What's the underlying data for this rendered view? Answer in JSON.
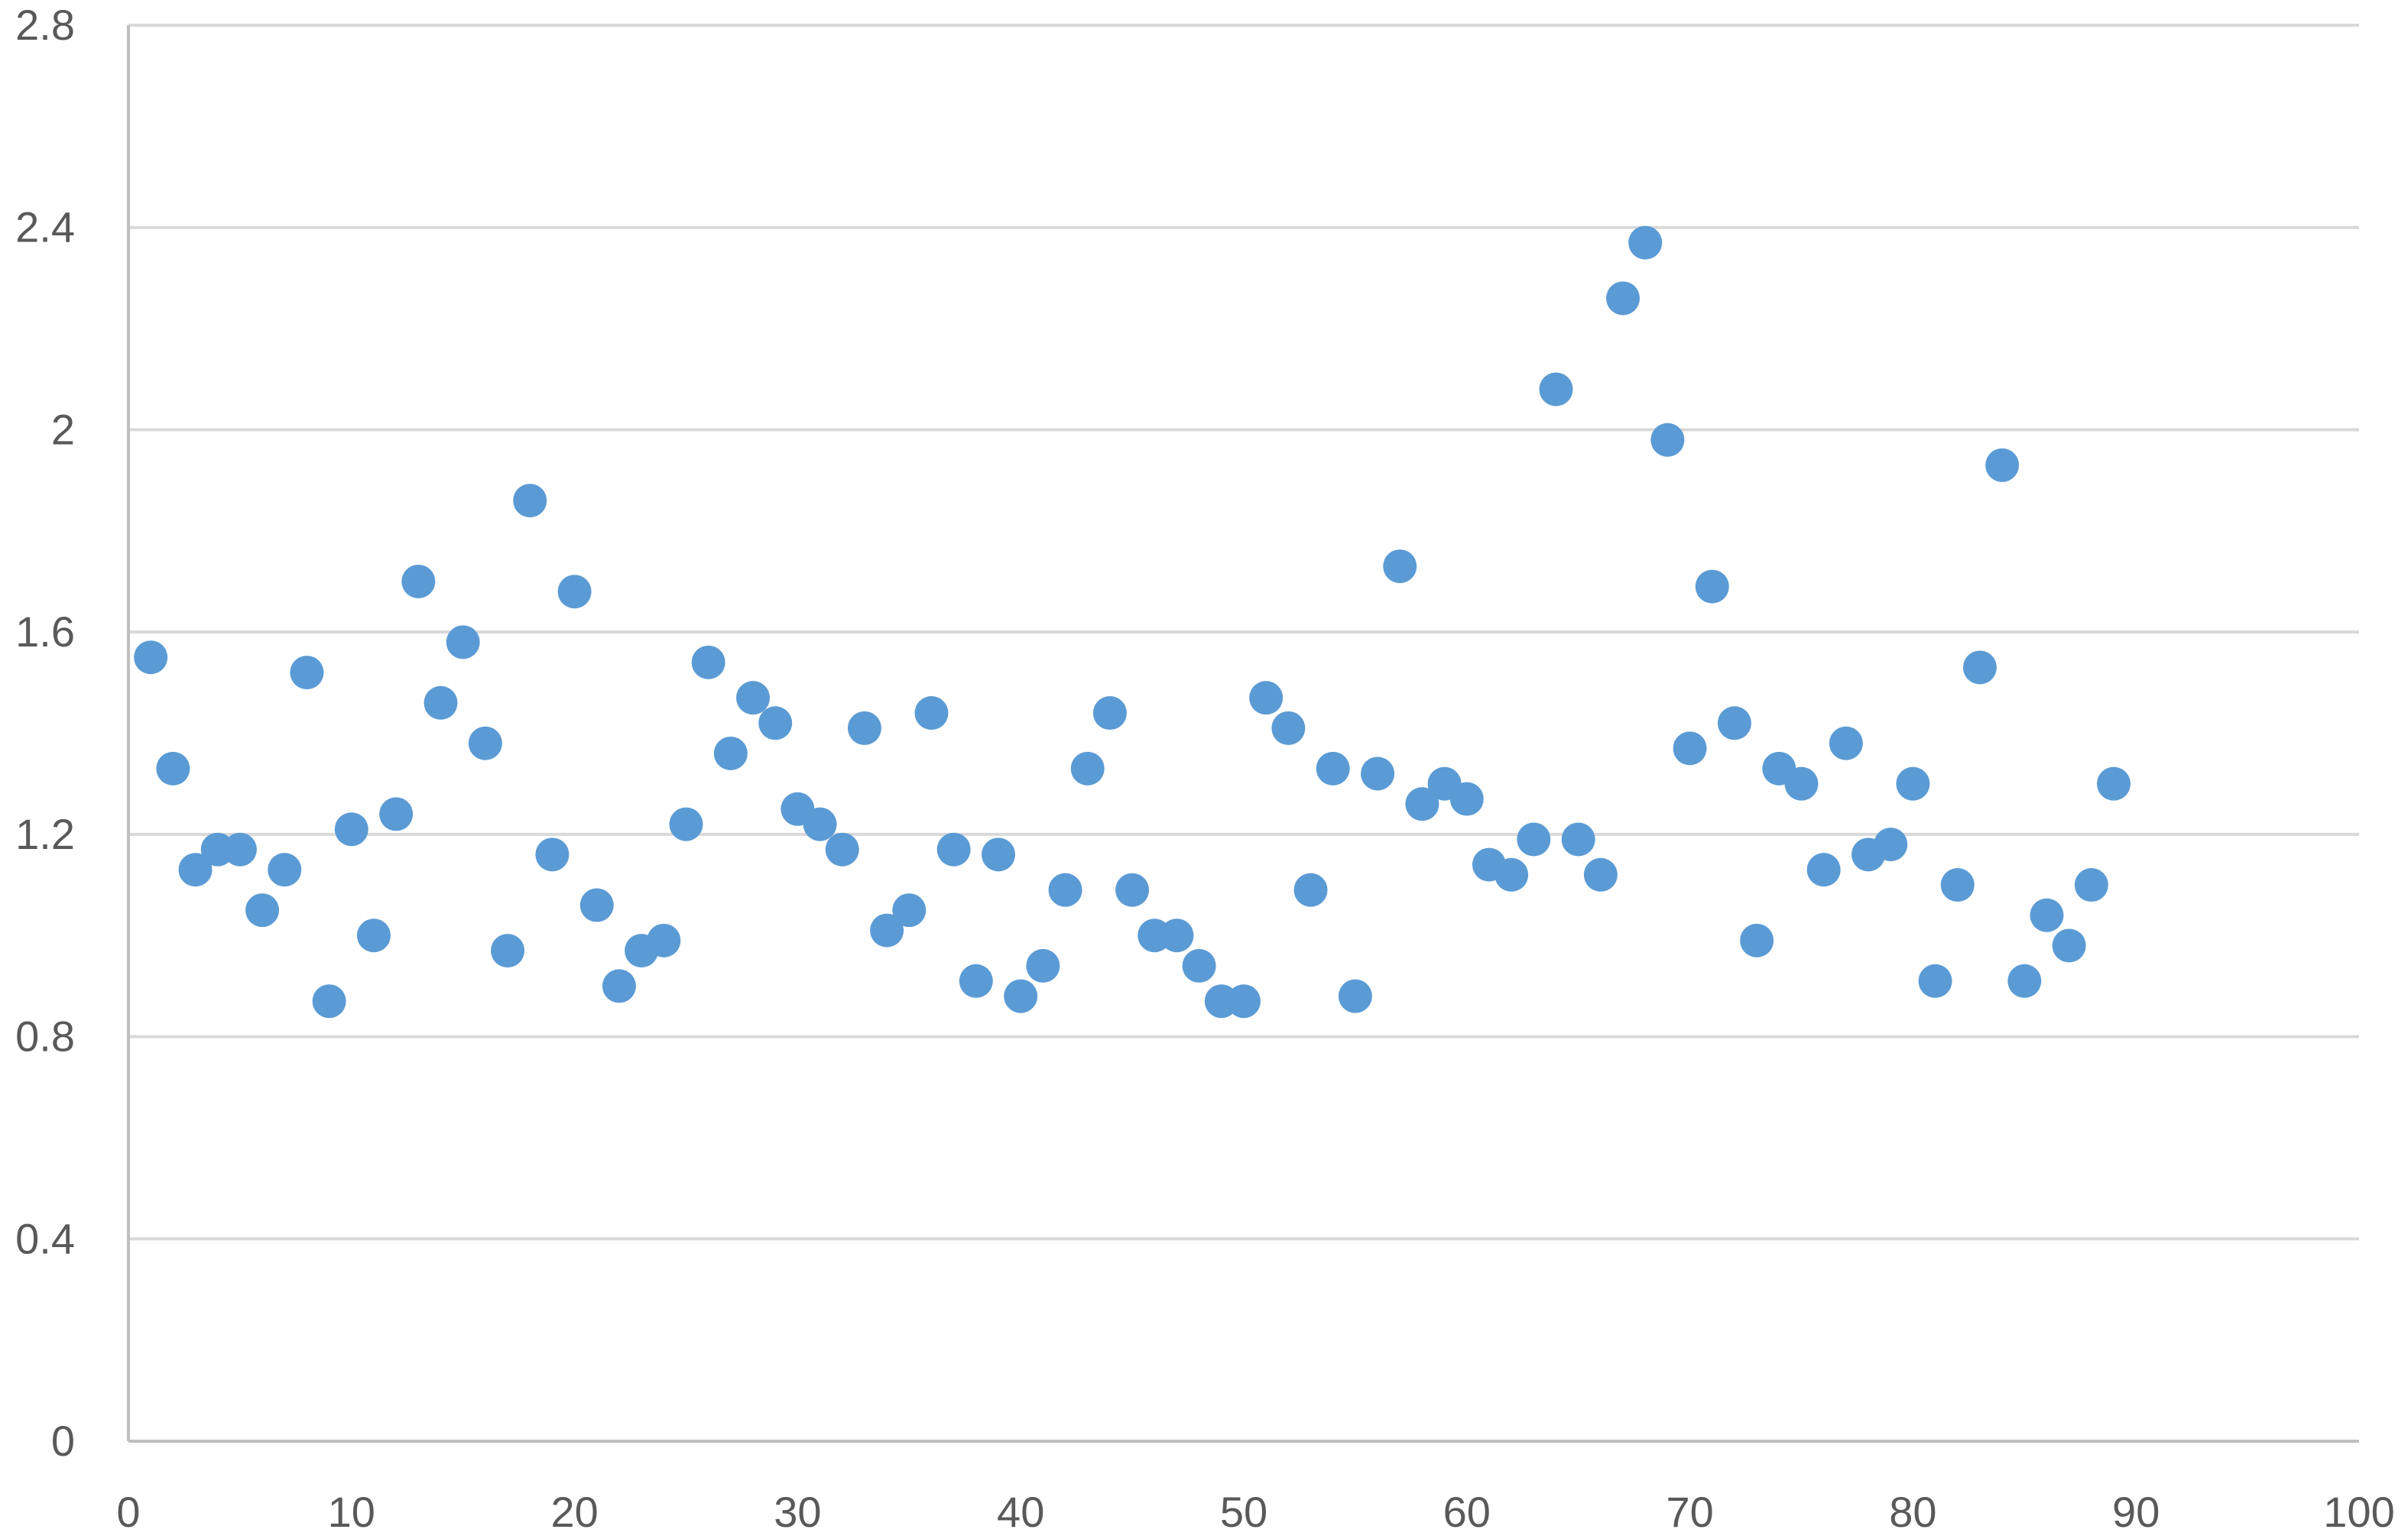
{
  "chart_data": {
    "type": "scatter",
    "title": "",
    "xlabel": "",
    "ylabel": "",
    "xlim": [
      0,
      100
    ],
    "ylim": [
      0,
      2.8
    ],
    "x_ticks": [
      0,
      10,
      20,
      30,
      40,
      50,
      60,
      70,
      80,
      90,
      100
    ],
    "y_ticks": [
      0,
      0.4,
      0.8,
      1.2,
      1.6,
      2,
      2.4,
      2.8
    ],
    "x_tick_labels": [
      "0",
      "10",
      "20",
      "30",
      "40",
      "50",
      "60",
      "70",
      "80",
      "90",
      "100"
    ],
    "y_tick_labels": [
      "0",
      "0.4",
      "0.8",
      "1.2",
      "1.6",
      "2",
      "2.4",
      "2.8"
    ],
    "grid": "horizontal",
    "legend": "none",
    "marker_color": "#5b9bd5",
    "series": [
      {
        "points": [
          [
            1,
            1.55
          ],
          [
            2,
            1.33
          ],
          [
            3,
            1.13
          ],
          [
            4,
            1.17
          ],
          [
            5,
            1.17
          ],
          [
            6,
            1.05
          ],
          [
            7,
            1.13
          ],
          [
            8,
            1.52
          ],
          [
            9,
            0.87
          ],
          [
            10,
            1.21
          ],
          [
            11,
            1.0
          ],
          [
            12,
            1.24
          ],
          [
            13,
            1.7
          ],
          [
            14,
            1.46
          ],
          [
            15,
            1.58
          ],
          [
            16,
            1.38
          ],
          [
            17,
            0.97
          ],
          [
            18,
            1.86
          ],
          [
            19,
            1.16
          ],
          [
            20,
            1.68
          ],
          [
            21,
            1.06
          ],
          [
            22,
            0.9
          ],
          [
            23,
            0.97
          ],
          [
            24,
            0.99
          ],
          [
            25,
            1.22
          ],
          [
            26,
            1.54
          ],
          [
            27,
            1.36
          ],
          [
            28,
            1.47
          ],
          [
            29,
            1.42
          ],
          [
            30,
            1.25
          ],
          [
            31,
            1.22
          ],
          [
            32,
            1.17
          ],
          [
            33,
            1.41
          ],
          [
            34,
            1.01
          ],
          [
            35,
            1.05
          ],
          [
            36,
            1.44
          ],
          [
            37,
            1.17
          ],
          [
            38,
            0.91
          ],
          [
            39,
            1.16
          ],
          [
            40,
            0.88
          ],
          [
            41,
            0.94
          ],
          [
            42,
            1.09
          ],
          [
            43,
            1.33
          ],
          [
            44,
            1.44
          ],
          [
            45,
            1.09
          ],
          [
            46,
            1.0
          ],
          [
            47,
            1.0
          ],
          [
            48,
            0.94
          ],
          [
            49,
            0.87
          ],
          [
            50,
            0.87
          ],
          [
            51,
            1.47
          ],
          [
            52,
            1.41
          ],
          [
            53,
            1.09
          ],
          [
            54,
            1.33
          ],
          [
            55,
            0.88
          ],
          [
            56,
            1.32
          ],
          [
            57,
            1.73
          ],
          [
            58,
            1.26
          ],
          [
            59,
            1.3
          ],
          [
            60,
            1.27
          ],
          [
            61,
            1.14
          ],
          [
            62,
            1.12
          ],
          [
            63,
            1.19
          ],
          [
            64,
            2.08
          ],
          [
            65,
            1.19
          ],
          [
            66,
            1.12
          ],
          [
            67,
            2.26
          ],
          [
            68,
            2.37
          ],
          [
            69,
            1.98
          ],
          [
            70,
            1.37
          ],
          [
            71,
            1.69
          ],
          [
            72,
            1.42
          ],
          [
            73,
            0.99
          ],
          [
            74,
            1.33
          ],
          [
            75,
            1.3
          ],
          [
            76,
            1.13
          ],
          [
            77,
            1.38
          ],
          [
            78,
            1.16
          ],
          [
            79,
            1.18
          ],
          [
            80,
            1.3
          ],
          [
            81,
            0.91
          ],
          [
            82,
            1.1
          ],
          [
            83,
            1.53
          ],
          [
            84,
            1.93
          ],
          [
            85,
            0.91
          ],
          [
            86,
            1.04
          ],
          [
            87,
            0.98
          ],
          [
            88,
            1.1
          ],
          [
            89,
            1.3
          ]
        ]
      }
    ]
  }
}
